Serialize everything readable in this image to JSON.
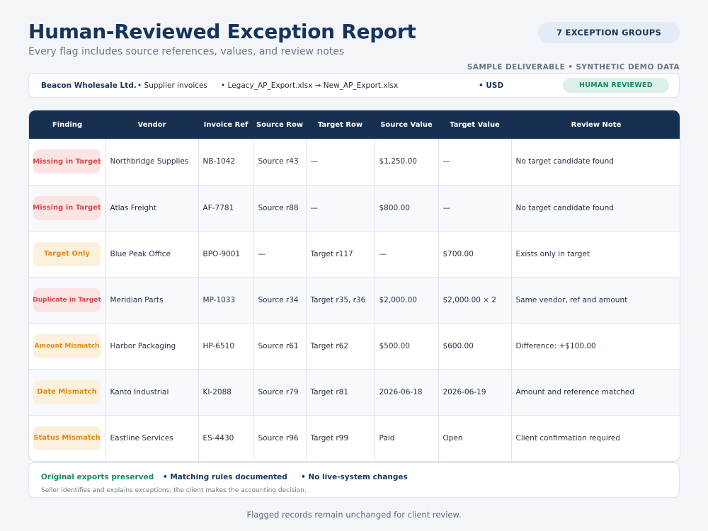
{
  "header": {
    "title": "Human-Reviewed Exception Report",
    "subtitle": "Every flag includes source references, values, and review notes",
    "groups_badge": "7 EXCEPTION GROUPS",
    "sample_note": "SAMPLE DELIVERABLE • SYNTHETIC DEMO DATA"
  },
  "info": {
    "company": "Beacon Wholesale Ltd.",
    "documents": "• Supplier invoices",
    "files": "• Legacy_AP_Export.xlsx → New_AP_Export.xlsx",
    "currency": "• USD",
    "status": "HUMAN REVIEWED"
  },
  "table": {
    "columns": [
      "Finding",
      "Vendor",
      "Invoice Ref",
      "Source Row",
      "Target Row",
      "Source Value",
      "Target Value",
      "Review Note"
    ],
    "rows": [
      {
        "finding": "Missing in Target",
        "tone": "red",
        "vendor": "Northbridge Supplies",
        "ref": "NB-1042",
        "source_row": "Source r43",
        "target_row": "—",
        "source_value": "$1,250.00",
        "target_value": "—",
        "note": "No target candidate found"
      },
      {
        "finding": "Missing in Target",
        "tone": "red",
        "vendor": "Atlas Freight",
        "ref": "AF-7781",
        "source_row": "Source r88",
        "target_row": "—",
        "source_value": "$800.00",
        "target_value": "—",
        "note": "No target candidate found"
      },
      {
        "finding": "Target Only",
        "tone": "orange",
        "vendor": "Blue Peak Office",
        "ref": "BPO-9001",
        "source_row": "—",
        "target_row": "Target r117",
        "source_value": "—",
        "target_value": "$700.00",
        "note": "Exists only in target"
      },
      {
        "finding": "Duplicate in Target",
        "tone": "red",
        "vendor": "Meridian Parts",
        "ref": "MP-1033",
        "source_row": "Source r34",
        "target_row": "Target r35, r36",
        "source_value": "$2,000.00",
        "target_value": "$2,000.00 × 2",
        "note": "Same vendor, ref and amount"
      },
      {
        "finding": "Amount Mismatch",
        "tone": "orange",
        "vendor": "Harbor Packaging",
        "ref": "HP-6510",
        "source_row": "Source r61",
        "target_row": "Target r62",
        "source_value": "$500.00",
        "target_value": "$600.00",
        "note": "Difference: +$100.00"
      },
      {
        "finding": "Date Mismatch",
        "tone": "orange",
        "vendor": "Kanto Industrial",
        "ref": "KI-2088",
        "source_row": "Source r79",
        "target_row": "Target r81",
        "source_value": "2026-06-18",
        "target_value": "2026-06-19",
        "note": "Amount and reference matched"
      },
      {
        "finding": "Status Mismatch",
        "tone": "orange",
        "vendor": "Eastline Services",
        "ref": "ES-4430",
        "source_row": "Source r96",
        "target_row": "Target r99",
        "source_value": "Paid",
        "target_value": "Open",
        "note": "Client confirmation required"
      }
    ]
  },
  "footer": {
    "preserved": "Original exports preserved",
    "rules": "• Matching rules documented",
    "no_live": "• No live-system changes",
    "disclaimer": "Seller identifies and explains exceptions; the client makes the accounting decision."
  },
  "bottom_note": "Flagged records remain unchanged for client review.",
  "colors": {
    "navy": "#17304f",
    "red_badge_text": "#d64a4a",
    "orange_badge_text": "#e08a16",
    "green": "#1a8a66"
  }
}
